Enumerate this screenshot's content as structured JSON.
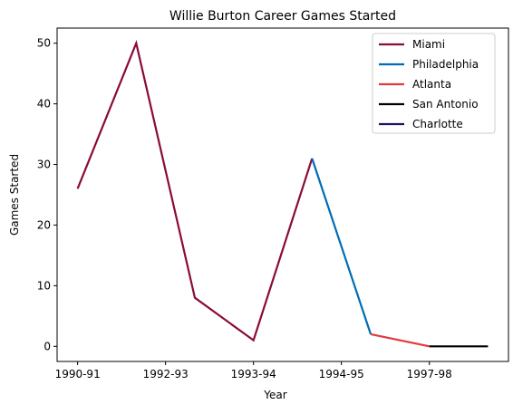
{
  "chart_data": {
    "type": "line",
    "title": "Willie Burton Career Games Started",
    "xlabel": "Year",
    "ylabel": "Games Started",
    "x_tick_labels": [
      "1990-91",
      "1992-93",
      "1993-94",
      "1994-95",
      "1997-98"
    ],
    "x_tick_positions": [
      0,
      1.5,
      3,
      4.5,
      6
    ],
    "xlim": [
      -0.35,
      7.35
    ],
    "ylim": [
      -2.5,
      52.5
    ],
    "y_ticks": [
      0,
      10,
      20,
      30,
      40,
      50
    ],
    "grid": false,
    "legend_position": "top-right",
    "series": [
      {
        "name": "Miami",
        "color": "#8b0a3a",
        "x": [
          0,
          1,
          2,
          3,
          4
        ],
        "y": [
          26,
          50,
          8,
          1,
          31
        ]
      },
      {
        "name": "Philadelphia",
        "color": "#006bb6",
        "x": [
          4,
          5
        ],
        "y": [
          31,
          2
        ]
      },
      {
        "name": "Atlanta",
        "color": "#e03a3e",
        "x": [
          5,
          6
        ],
        "y": [
          2,
          0
        ]
      },
      {
        "name": "San Antonio",
        "color": "#000000",
        "x": [
          6,
          7
        ],
        "y": [
          0,
          0
        ]
      },
      {
        "name": "Charlotte",
        "color": "#1d1160",
        "x": [],
        "y": []
      }
    ]
  }
}
